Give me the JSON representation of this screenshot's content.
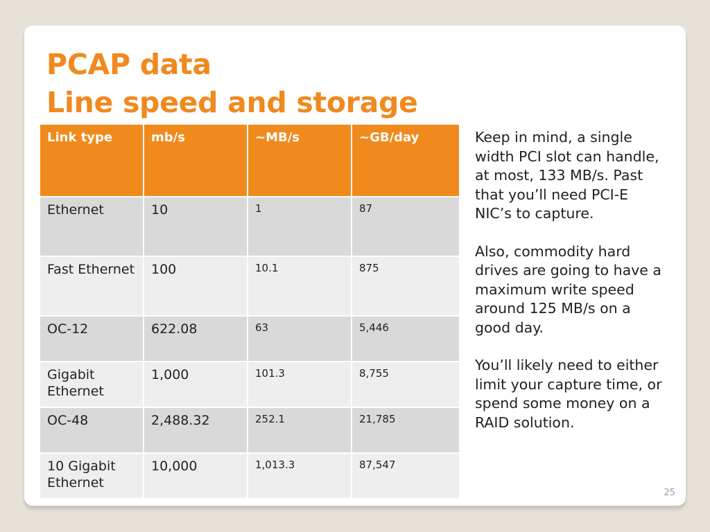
{
  "slide": {
    "title_line1": "PCAP data",
    "title_line2": "Line speed and storage",
    "page_number": "25",
    "accent_color": "#f08a1c"
  },
  "table": {
    "headers": [
      "Link type",
      "mb/s",
      "~MB/s",
      "~GB/day"
    ],
    "rows": [
      {
        "link_type": "Ethernet",
        "mbps": "10",
        "MBps": "1",
        "GBday": "87"
      },
      {
        "link_type": "Fast Ethernet",
        "mbps": "100",
        "MBps": "10.1",
        "GBday": "875"
      },
      {
        "link_type": "OC-12",
        "mbps": "622.08",
        "MBps": "63",
        "GBday": "5,446"
      },
      {
        "link_type": "Gigabit Ethernet",
        "mbps": "1,000",
        "MBps": "101.3",
        "GBday": "8,755"
      },
      {
        "link_type": "OC-48",
        "mbps": "2,488.32",
        "MBps": "252.1",
        "GBday": "21,785"
      },
      {
        "link_type": "10 Gigabit Ethernet",
        "mbps": "10,000",
        "MBps": "1,013.3",
        "GBday": "87,547"
      }
    ]
  },
  "notes": [
    "Keep in mind, a single width PCI slot can handle, at most, 133 MB/s. Past that you’ll need PCI-E NIC’s to capture.",
    "Also, commodity hard drives are going to have a maximum write speed around 125 MB/s on a good day.",
    "You’ll likely need to either limit your capture time, or spend some money on a RAID solution."
  ]
}
